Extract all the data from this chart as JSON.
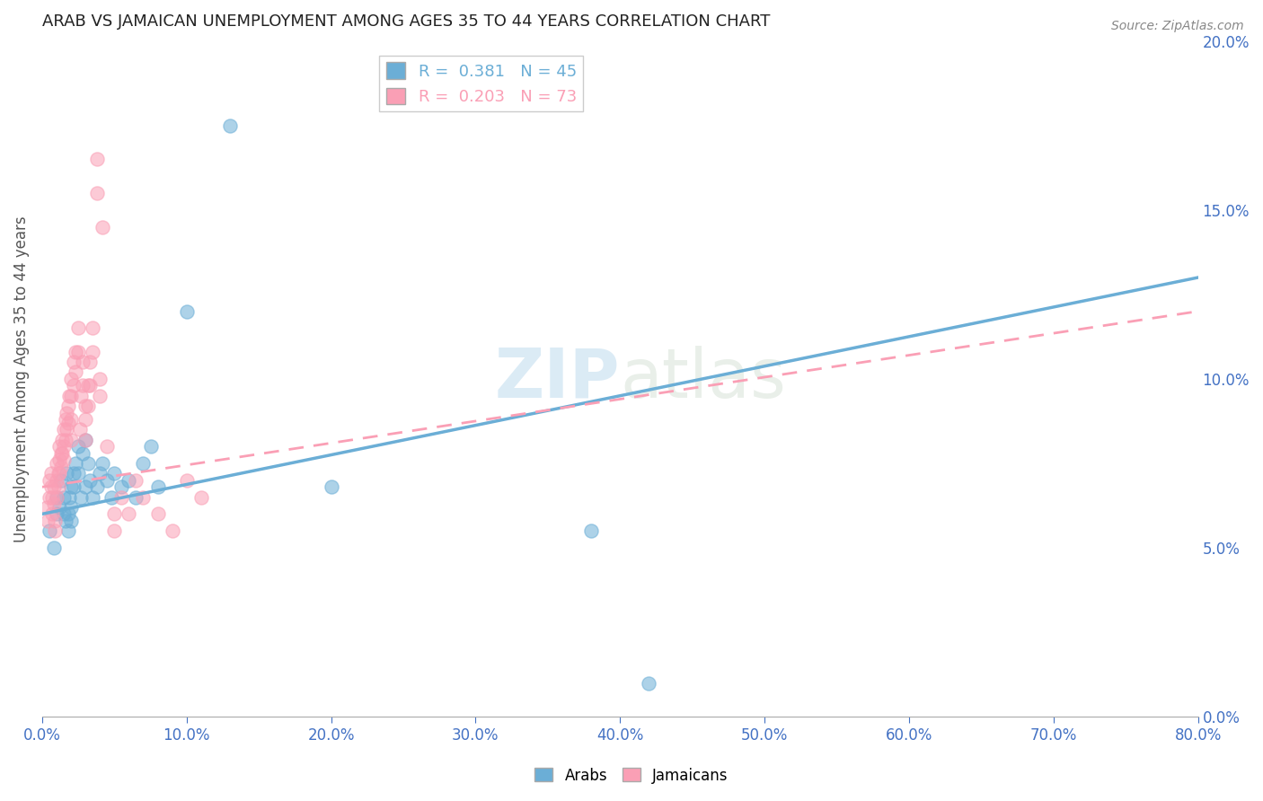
{
  "title": "ARAB VS JAMAICAN UNEMPLOYMENT AMONG AGES 35 TO 44 YEARS CORRELATION CHART",
  "source": "Source: ZipAtlas.com",
  "ylabel": "Unemployment Among Ages 35 to 44 years",
  "xlim": [
    0,
    0.8
  ],
  "ylim": [
    0,
    0.2
  ],
  "xticks": [
    0.0,
    0.1,
    0.2,
    0.3,
    0.4,
    0.5,
    0.6,
    0.7,
    0.8
  ],
  "yticks": [
    0.0,
    0.05,
    0.1,
    0.15,
    0.2
  ],
  "arab_color": "#6baed6",
  "jamaican_color": "#fa9fb5",
  "arab_R": 0.381,
  "arab_N": 45,
  "jamaican_R": 0.203,
  "jamaican_N": 73,
  "background_color": "#ffffff",
  "watermark": "ZIPatlas",
  "arab_line": [
    0.06,
    0.13
  ],
  "jamaican_line": [
    0.068,
    0.12
  ],
  "arab_x": [
    0.005,
    0.008,
    0.01,
    0.01,
    0.012,
    0.013,
    0.015,
    0.015,
    0.016,
    0.017,
    0.018,
    0.018,
    0.019,
    0.02,
    0.02,
    0.02,
    0.022,
    0.022,
    0.023,
    0.025,
    0.025,
    0.027,
    0.028,
    0.03,
    0.03,
    0.032,
    0.033,
    0.035,
    0.038,
    0.04,
    0.042,
    0.045,
    0.048,
    0.05,
    0.055,
    0.06,
    0.065,
    0.07,
    0.075,
    0.08,
    0.1,
    0.13,
    0.2,
    0.38,
    0.42
  ],
  "arab_y": [
    0.055,
    0.05,
    0.065,
    0.06,
    0.062,
    0.07,
    0.065,
    0.06,
    0.058,
    0.072,
    0.055,
    0.06,
    0.065,
    0.068,
    0.062,
    0.058,
    0.072,
    0.068,
    0.075,
    0.08,
    0.072,
    0.065,
    0.078,
    0.082,
    0.068,
    0.075,
    0.07,
    0.065,
    0.068,
    0.072,
    0.075,
    0.07,
    0.065,
    0.072,
    0.068,
    0.07,
    0.065,
    0.075,
    0.08,
    0.068,
    0.12,
    0.175,
    0.068,
    0.055,
    0.01
  ],
  "jamaican_x": [
    0.003,
    0.004,
    0.005,
    0.005,
    0.006,
    0.006,
    0.007,
    0.007,
    0.008,
    0.008,
    0.009,
    0.009,
    0.01,
    0.01,
    0.01,
    0.011,
    0.011,
    0.012,
    0.012,
    0.012,
    0.013,
    0.013,
    0.014,
    0.014,
    0.015,
    0.015,
    0.015,
    0.016,
    0.016,
    0.017,
    0.017,
    0.018,
    0.018,
    0.019,
    0.02,
    0.02,
    0.02,
    0.02,
    0.022,
    0.022,
    0.023,
    0.023,
    0.025,
    0.025,
    0.026,
    0.027,
    0.028,
    0.028,
    0.03,
    0.03,
    0.03,
    0.032,
    0.032,
    0.033,
    0.033,
    0.035,
    0.035,
    0.038,
    0.038,
    0.04,
    0.04,
    0.042,
    0.045,
    0.05,
    0.05,
    0.055,
    0.06,
    0.065,
    0.07,
    0.08,
    0.09,
    0.1,
    0.11
  ],
  "jamaican_y": [
    0.062,
    0.058,
    0.07,
    0.065,
    0.072,
    0.068,
    0.065,
    0.06,
    0.068,
    0.063,
    0.058,
    0.055,
    0.075,
    0.07,
    0.065,
    0.072,
    0.068,
    0.08,
    0.076,
    0.072,
    0.078,
    0.074,
    0.082,
    0.078,
    0.085,
    0.08,
    0.076,
    0.088,
    0.082,
    0.09,
    0.085,
    0.092,
    0.087,
    0.095,
    0.1,
    0.095,
    0.088,
    0.082,
    0.105,
    0.098,
    0.108,
    0.102,
    0.115,
    0.108,
    0.085,
    0.095,
    0.105,
    0.098,
    0.092,
    0.088,
    0.082,
    0.098,
    0.092,
    0.105,
    0.098,
    0.115,
    0.108,
    0.155,
    0.165,
    0.1,
    0.095,
    0.145,
    0.08,
    0.06,
    0.055,
    0.065,
    0.06,
    0.07,
    0.065,
    0.06,
    0.055,
    0.07,
    0.065
  ]
}
